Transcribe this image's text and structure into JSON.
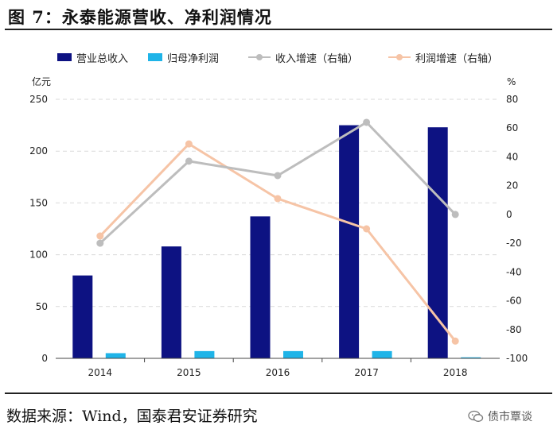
{
  "title": "图 7：永泰能源营收、净利润情况",
  "source": "数据来源：Wind，国泰君安证券研究",
  "watermark": {
    "text": "债市覃谈",
    "icon": "wechat-icon"
  },
  "colors": {
    "revenue": "#0d1282",
    "net_profit": "#1fb4e8",
    "revenue_growth": "#bdbdbd",
    "profit_growth": "#f6c4a6",
    "grid": "#d9d9d9",
    "axis": "#444444"
  },
  "chart_data": {
    "type": "bar",
    "categories": [
      "2014",
      "2015",
      "2016",
      "2017",
      "2018"
    ],
    "series": [
      {
        "name": "营业总收入",
        "type": "bar",
        "axis": "left",
        "values": [
          80,
          108,
          137,
          225,
          223
        ]
      },
      {
        "name": "归母净利润",
        "type": "bar",
        "axis": "left",
        "values": [
          5,
          7,
          7,
          7,
          1
        ]
      },
      {
        "name": "收入增速（右轴）",
        "type": "line",
        "axis": "right",
        "values": [
          -20,
          37,
          27,
          64,
          0
        ]
      },
      {
        "name": "利润增速（右轴）",
        "type": "line",
        "axis": "right",
        "values": [
          -15,
          49,
          11,
          -10,
          -88
        ]
      }
    ],
    "left_axis": {
      "unit": "亿元",
      "ylim": [
        0,
        250
      ],
      "ticks": [
        0,
        50,
        100,
        150,
        200,
        250
      ]
    },
    "right_axis": {
      "unit": "%",
      "ylim": [
        -100,
        80
      ],
      "ticks": [
        -100,
        -80,
        -60,
        -40,
        -20,
        0,
        20,
        40,
        60,
        80
      ]
    },
    "grid": true,
    "legend": "top"
  }
}
